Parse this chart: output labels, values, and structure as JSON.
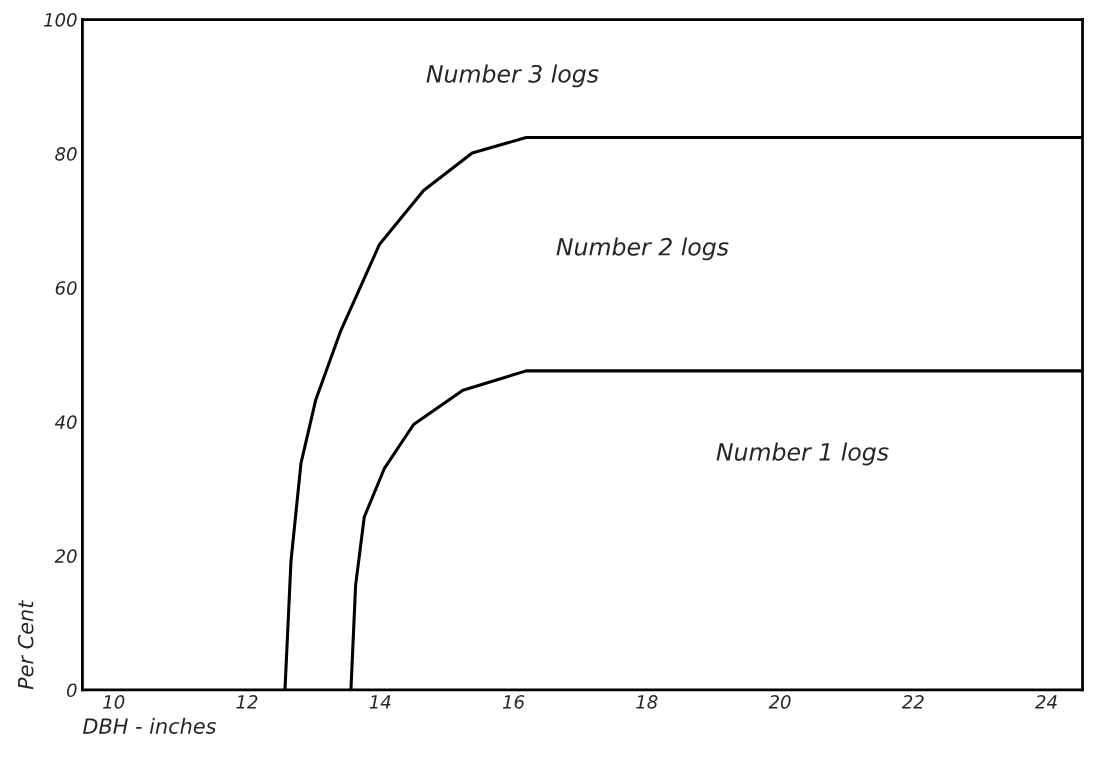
{
  "chart_data": {
    "type": "line",
    "xlabel": "DBH - inches",
    "ylabel": "Per Cent",
    "xlim": [
      9.53,
      24.54
    ],
    "xticks": [
      10,
      12,
      14,
      16,
      18,
      20,
      22,
      24
    ],
    "ylim": [
      0,
      100
    ],
    "yticks": [
      0,
      20,
      40,
      60,
      80,
      100
    ],
    "grid": false,
    "legend": false,
    "marker": "none",
    "line_style": "solid",
    "series": [
      {
        "color": "#000000",
        "x": [
          12.57,
          12.66,
          12.81,
          13.03,
          13.4,
          13.99,
          14.65,
          15.38,
          16.19,
          24.54
        ],
        "values": [
          0,
          19.2,
          33.8,
          43.2,
          53.4,
          66.5,
          74.5,
          80.1,
          82.4,
          82.4
        ]
      },
      {
        "color": "#000000",
        "x": [
          13.56,
          13.63,
          13.76,
          14.06,
          14.5,
          15.24,
          16.19,
          24.54
        ],
        "values": [
          0,
          15.6,
          25.8,
          33.0,
          39.6,
          44.7,
          47.6,
          47.6
        ]
      }
    ],
    "annotations": [
      "Number 3 logs",
      "Number 2 logs",
      "Number 1 logs"
    ]
  }
}
